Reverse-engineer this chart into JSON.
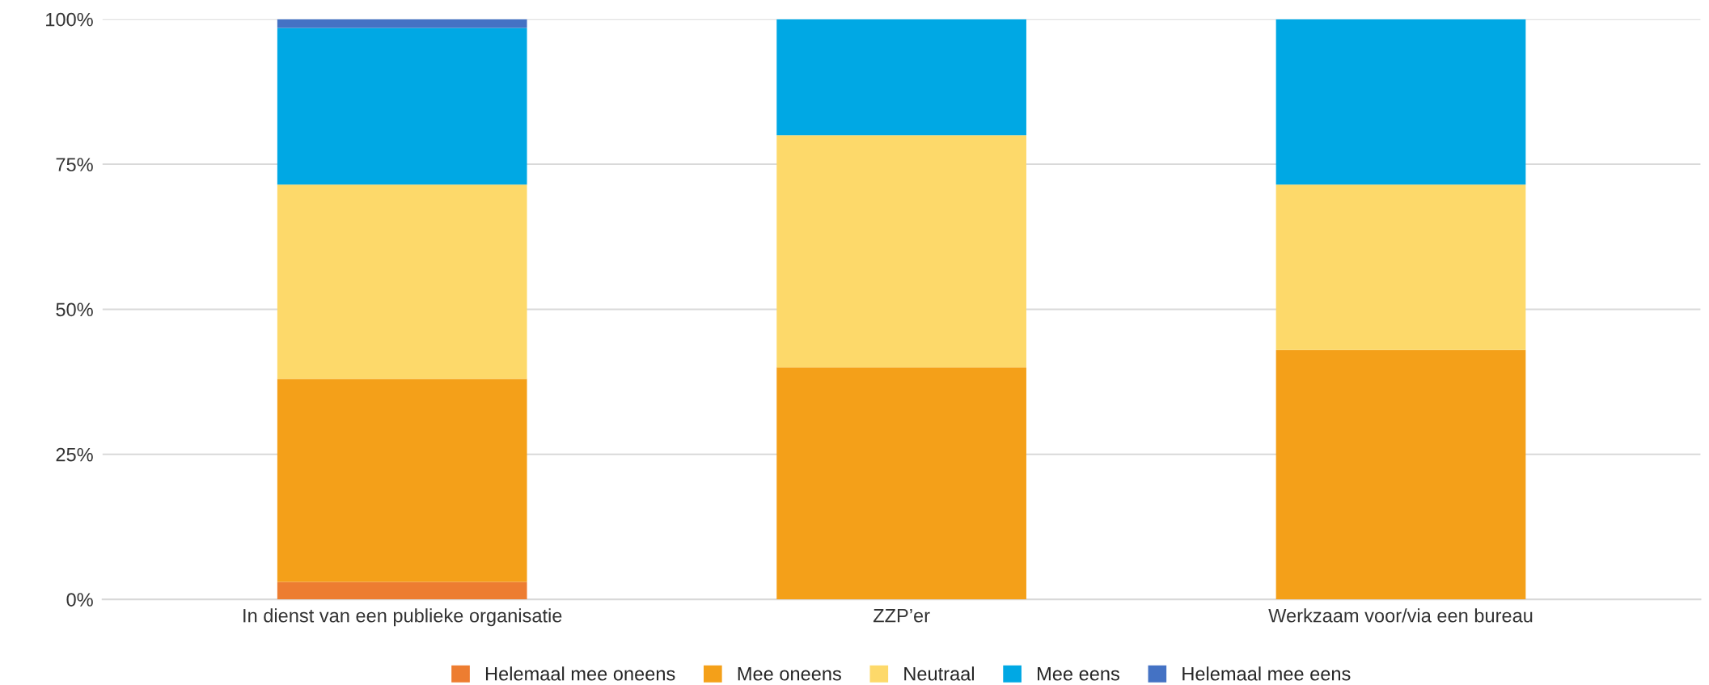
{
  "chart_data": {
    "type": "bar",
    "stacked": true,
    "categories": [
      "In dienst van een publieke organisatie",
      "ZZP’er",
      "Werkzaam voor/via een bureau"
    ],
    "series": [
      {
        "name": "Helemaal mee oneens",
        "color": "#ed7d31",
        "values": [
          3,
          0,
          0
        ]
      },
      {
        "name": "Mee oneens",
        "color": "#f4a019",
        "values": [
          35,
          40,
          43
        ]
      },
      {
        "name": "Neutraal",
        "color": "#fdd96a",
        "values": [
          33.5,
          40,
          28.5
        ]
      },
      {
        "name": "Mee eens",
        "color": "#00a8e4",
        "values": [
          27,
          20,
          28.5
        ]
      },
      {
        "name": "Helemaal mee eens",
        "color": "#4472c4",
        "values": [
          1.5,
          0,
          0
        ]
      }
    ],
    "ylim": [
      0,
      100
    ],
    "yticks": [
      {
        "value": 0,
        "label": "0%"
      },
      {
        "value": 25,
        "label": "25%"
      },
      {
        "value": 50,
        "label": "50%"
      },
      {
        "value": 75,
        "label": "75%"
      },
      {
        "value": 100,
        "label": "100%"
      }
    ],
    "grid": "y",
    "legend": "bottom"
  }
}
